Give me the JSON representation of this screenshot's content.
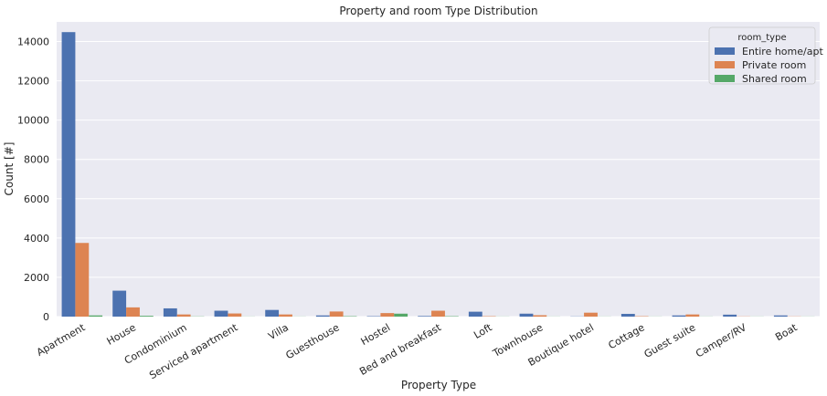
{
  "chart_data": {
    "type": "bar",
    "title": "Property and room Type Distribution",
    "xlabel": "Property Type",
    "ylabel": "Count [#]",
    "ylim": [
      0,
      15000
    ],
    "yticks": [
      0,
      2000,
      4000,
      6000,
      8000,
      10000,
      12000,
      14000
    ],
    "grid": true,
    "legend_position": "top-right",
    "legend_title": "room_type",
    "background": "#eaeaf2",
    "categories": [
      "Apartment",
      "House",
      "Condominium",
      "Serviced apartment",
      "Villa",
      "Guesthouse",
      "Hostel",
      "Bed and breakfast",
      "Loft",
      "Townhouse",
      "Boutique hotel",
      "Cottage",
      "Guest suite",
      "Camper/RV",
      "Boat"
    ],
    "series": [
      {
        "name": "Entire home/apt",
        "color": "#4c72b0",
        "values": [
          14480,
          1320,
          420,
          300,
          340,
          60,
          20,
          30,
          250,
          150,
          10,
          140,
          60,
          100,
          60
        ]
      },
      {
        "name": "Private room",
        "color": "#dd8452",
        "values": [
          3750,
          470,
          110,
          160,
          110,
          260,
          180,
          300,
          20,
          70,
          200,
          20,
          110,
          10,
          10
        ]
      },
      {
        "name": "Shared room",
        "color": "#55a868",
        "values": [
          60,
          40,
          10,
          5,
          5,
          20,
          150,
          20,
          5,
          5,
          5,
          5,
          5,
          5,
          5
        ]
      }
    ]
  }
}
